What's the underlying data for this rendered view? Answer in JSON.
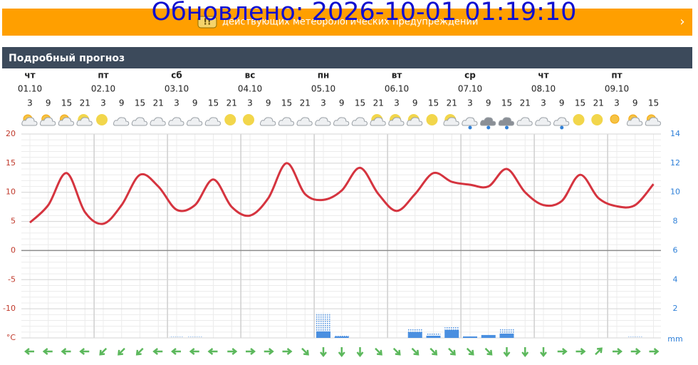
{
  "banner": {
    "updated": "Обновлено: 2026-10-01 01:19:10",
    "warning": "действующих метеорологических предупреждений"
  },
  "section_title": "Подробный прогноз",
  "chart_data": {
    "type": "line",
    "days": [
      {
        "weekday": "чт",
        "date": "01.10"
      },
      {
        "weekday": "пт",
        "date": "02.10"
      },
      {
        "weekday": "сб",
        "date": "03.10"
      },
      {
        "weekday": "вс",
        "date": "04.10"
      },
      {
        "weekday": "пн",
        "date": "05.10"
      },
      {
        "weekday": "вт",
        "date": "06.10"
      },
      {
        "weekday": "ср",
        "date": "07.10"
      },
      {
        "weekday": "чт",
        "date": "08.10"
      },
      {
        "weekday": "пт",
        "date": "09.10"
      }
    ],
    "categories": [
      "3",
      "9",
      "15",
      "21",
      "3",
      "9",
      "15",
      "21",
      "3",
      "9",
      "15",
      "21",
      "3",
      "9",
      "15",
      "21",
      "3",
      "9",
      "15",
      "21",
      "3",
      "9",
      "15",
      "21",
      "3",
      "9",
      "15",
      "21",
      "3",
      "9",
      "15",
      "21",
      "3",
      "9",
      "15"
    ],
    "series": [
      {
        "color": "#d5343f",
        "values": [
          4.8,
          7.8,
          13.3,
          6.6,
          4.6,
          7.8,
          13,
          11,
          7,
          7.8,
          12.2,
          7.5,
          6,
          9,
          15,
          9.7,
          8.7,
          10.3,
          14.2,
          9.7,
          6.8,
          9.7,
          13.3,
          11.8,
          11.3,
          11,
          14,
          10,
          7.8,
          8.5,
          13,
          9,
          7.6,
          7.8,
          11.4
        ]
      },
      {
        "type": "bar",
        "axis": "y2",
        "color": "#4a8fe0",
        "values": [
          0,
          0,
          0,
          0,
          0,
          0,
          0,
          0,
          0,
          0,
          0,
          0,
          0,
          0,
          0,
          0,
          0.45,
          0.1,
          0,
          0,
          0,
          0.4,
          0.15,
          0.55,
          0.1,
          0.2,
          0.3,
          0,
          0,
          0,
          0,
          0,
          0,
          0,
          0
        ]
      },
      {
        "type": "bar",
        "axis": "y2",
        "color": "#4a8fe0",
        "values": [
          0,
          0,
          0,
          0,
          0,
          0,
          0,
          0,
          0.1,
          0.1,
          0,
          0,
          0,
          0,
          0,
          0,
          1.25,
          0.1,
          0,
          0,
          0,
          0.25,
          0.2,
          0.2,
          0,
          0,
          0.35,
          0,
          0,
          0,
          0,
          0,
          0,
          0.1,
          0
        ]
      }
    ],
    "ylim": [
      -15,
      20
    ],
    "yticks": [
      20,
      15,
      10,
      5,
      0,
      -5,
      -10,
      {
        "value": -15,
        "label": "°C"
      }
    ],
    "y2lim": [
      0,
      14
    ],
    "y2ticks": [
      14,
      12,
      10,
      8,
      6,
      4,
      2,
      {
        "value": 0,
        "label": "mm"
      }
    ],
    "grid": true
  }
}
